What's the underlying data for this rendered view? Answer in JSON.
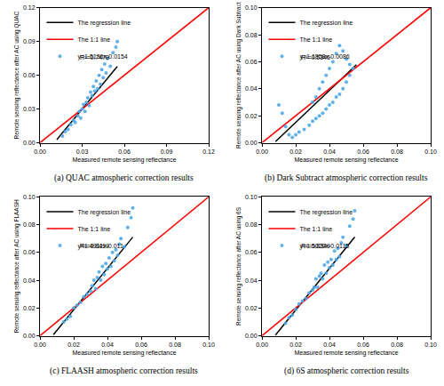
{
  "chart_data": [
    {
      "type": "scatter",
      "title": "(a) QUAC atmospheric correction results",
      "x_label": "Measured remote sensing reflectance",
      "y_label": "Remote sensing reflectance after AC using QUAC",
      "xlim": [
        0,
        0.12
      ],
      "ylim": [
        0,
        0.12
      ],
      "xticks": [
        {
          "value": 0,
          "label": "0.00"
        },
        {
          "value": 0.03,
          "label": "0.03"
        },
        {
          "value": 0.06,
          "label": "0.06"
        },
        {
          "value": 0.09,
          "label": "0.09"
        },
        {
          "value": 0.12,
          "label": "0.12"
        }
      ],
      "yticks": [
        {
          "value": 0,
          "label": "0.00"
        },
        {
          "value": 0.03,
          "label": "0.03"
        },
        {
          "value": 0.06,
          "label": "0.06"
        },
        {
          "value": 0.09,
          "label": "0.09"
        },
        {
          "value": 0.12,
          "label": "0.12"
        }
      ],
      "legend": "upper left",
      "grid": false,
      "annotations": [
        "R²=0.7470"
      ],
      "series": [
        {
          "name": "The regression line",
          "type": "line",
          "color": "#000000",
          "line_style": "solid",
          "x": [
            0.012,
            0.055
          ],
          "values": [
            0.0028,
            0.0678
          ]
        },
        {
          "name": "The 1:1 line",
          "type": "line",
          "color": "#ff0000",
          "line_style": "solid",
          "x": [
            0,
            0.12
          ],
          "values": [
            0,
            0.12
          ]
        },
        {
          "name": "y=1.5136x-0.0154",
          "type": "scatter",
          "color": "#4fa8e8",
          "marker": "circle",
          "x": [
            0.016,
            0.018,
            0.02,
            0.022,
            0.024,
            0.025,
            0.027,
            0.028,
            0.029,
            0.03,
            0.031,
            0.032,
            0.033,
            0.034,
            0.035,
            0.036,
            0.037,
            0.038,
            0.039,
            0.04,
            0.041,
            0.042,
            0.043,
            0.044,
            0.045,
            0.046,
            0.047,
            0.048,
            0.05,
            0.052,
            0.054,
            0.055
          ],
          "values": [
            0.006,
            0.01,
            0.012,
            0.016,
            0.02,
            0.018,
            0.024,
            0.028,
            0.022,
            0.03,
            0.034,
            0.028,
            0.036,
            0.04,
            0.033,
            0.045,
            0.042,
            0.05,
            0.046,
            0.055,
            0.048,
            0.06,
            0.052,
            0.065,
            0.058,
            0.07,
            0.062,
            0.075,
            0.068,
            0.08,
            0.085,
            0.09
          ]
        }
      ]
    },
    {
      "type": "scatter",
      "title": "(b) Dark Subtract atmospheric correction results",
      "x_label": "Measured remote sensing reflectance",
      "y_label": "Remote sensing reflectance after AC using Dark Subtract",
      "xlim": [
        0,
        0.1
      ],
      "ylim": [
        0,
        0.1
      ],
      "xticks": [
        {
          "value": 0,
          "label": "0.00"
        },
        {
          "value": 0.02,
          "label": "0.02"
        },
        {
          "value": 0.04,
          "label": "0.04"
        },
        {
          "value": 0.06,
          "label": "0.06"
        },
        {
          "value": 0.08,
          "label": "0.08"
        },
        {
          "value": 0.1,
          "label": "0.10"
        }
      ],
      "yticks": [
        {
          "value": 0,
          "label": "0.00"
        },
        {
          "value": 0.02,
          "label": "0.02"
        },
        {
          "value": 0.04,
          "label": "0.04"
        },
        {
          "value": 0.06,
          "label": "0.06"
        },
        {
          "value": 0.08,
          "label": "0.08"
        },
        {
          "value": 0.1,
          "label": "0.10"
        }
      ],
      "legend": "upper left",
      "grid": false,
      "annotations": [
        "R²=0.5346"
      ],
      "series": [
        {
          "name": "The regression line",
          "type": "line",
          "color": "#000000",
          "line_style": "solid",
          "x": [
            0.008,
            0.056
          ],
          "values": [
            0.0009,
            0.0578
          ]
        },
        {
          "name": "The 1:1 line",
          "type": "line",
          "color": "#ff0000",
          "line_style": "solid",
          "x": [
            0,
            0.1
          ],
          "values": [
            0,
            0.1
          ]
        },
        {
          "name": "y=1.1858x-0.0086",
          "type": "scatter",
          "color": "#4fa8e8",
          "marker": "circle",
          "x": [
            0.01,
            0.012,
            0.014,
            0.016,
            0.018,
            0.02,
            0.022,
            0.025,
            0.028,
            0.03,
            0.032,
            0.034,
            0.036,
            0.038,
            0.04,
            0.042,
            0.044,
            0.046,
            0.048,
            0.05,
            0.052,
            0.03,
            0.032,
            0.034,
            0.036,
            0.038,
            0.04,
            0.042,
            0.044,
            0.046,
            0.048,
            0.05,
            0.052,
            0.054
          ],
          "values": [
            0.028,
            0.022,
            0.012,
            0.006,
            0.004,
            0.006,
            0.008,
            0.01,
            0.013,
            0.016,
            0.018,
            0.02,
            0.022,
            0.025,
            0.028,
            0.03,
            0.034,
            0.036,
            0.04,
            0.045,
            0.05,
            0.03,
            0.034,
            0.04,
            0.045,
            0.05,
            0.055,
            0.06,
            0.066,
            0.072,
            0.068,
            0.062,
            0.058,
            0.055
          ]
        }
      ]
    },
    {
      "type": "scatter",
      "title": "(c) FLAASH atmospheric correction results",
      "x_label": "Measured remote sensing reflectance",
      "y_label": "Remote sensing reflectance after AC using FLAASH",
      "xlim": [
        0,
        0.1
      ],
      "ylim": [
        0,
        0.1
      ],
      "xticks": [
        {
          "value": 0,
          "label": "0.00"
        },
        {
          "value": 0.02,
          "label": "0.02"
        },
        {
          "value": 0.04,
          "label": "0.04"
        },
        {
          "value": 0.06,
          "label": "0.06"
        },
        {
          "value": 0.08,
          "label": "0.08"
        },
        {
          "value": 0.1,
          "label": "0.10"
        }
      ],
      "yticks": [
        {
          "value": 0,
          "label": "0.00"
        },
        {
          "value": 0.02,
          "label": "0.02"
        },
        {
          "value": 0.04,
          "label": "0.04"
        },
        {
          "value": 0.06,
          "label": "0.06"
        },
        {
          "value": 0.08,
          "label": "0.08"
        },
        {
          "value": 0.1,
          "label": "0.10"
        }
      ],
      "legend": "upper left",
      "grid": false,
      "annotations": [
        "R²=0.8499"
      ],
      "series": [
        {
          "name": "The regression line",
          "type": "line",
          "color": "#000000",
          "line_style": "solid",
          "x": [
            0.008,
            0.055
          ],
          "values": [
            0.0009,
            0.071
          ]
        },
        {
          "name": "The 1:1 line",
          "type": "line",
          "color": "#ff0000",
          "line_style": "solid",
          "x": [
            0,
            0.1
          ],
          "values": [
            0,
            0.1
          ]
        },
        {
          "name": "y=1.4911x-0.011",
          "type": "scatter",
          "color": "#4fa8e8",
          "marker": "circle",
          "x": [
            0.014,
            0.016,
            0.018,
            0.02,
            0.022,
            0.024,
            0.026,
            0.028,
            0.03,
            0.031,
            0.032,
            0.033,
            0.034,
            0.035,
            0.036,
            0.037,
            0.038,
            0.039,
            0.04,
            0.041,
            0.042,
            0.043,
            0.044,
            0.045,
            0.046,
            0.047,
            0.048,
            0.05,
            0.052,
            0.054,
            0.055
          ],
          "values": [
            0.01,
            0.012,
            0.014,
            0.02,
            0.022,
            0.024,
            0.028,
            0.03,
            0.032,
            0.036,
            0.04,
            0.034,
            0.042,
            0.046,
            0.04,
            0.05,
            0.044,
            0.052,
            0.048,
            0.056,
            0.05,
            0.06,
            0.054,
            0.062,
            0.058,
            0.066,
            0.07,
            0.064,
            0.078,
            0.085,
            0.092
          ]
        }
      ]
    },
    {
      "type": "scatter",
      "title": "(d) 6S atmospheric correction results",
      "x_label": "Measured remote sensing reflectance",
      "y_label": "Remote sensing reflectance after AC using 6S",
      "xlim": [
        0,
        0.1
      ],
      "ylim": [
        0,
        0.1
      ],
      "xticks": [
        {
          "value": 0,
          "label": "0.00"
        },
        {
          "value": 0.02,
          "label": "0.02"
        },
        {
          "value": 0.04,
          "label": "0.04"
        },
        {
          "value": 0.06,
          "label": "0.06"
        },
        {
          "value": 0.08,
          "label": "0.08"
        },
        {
          "value": 0.1,
          "label": "0.10"
        }
      ],
      "yticks": [
        {
          "value": 0,
          "label": "0.00"
        },
        {
          "value": 0.02,
          "label": "0.02"
        },
        {
          "value": 0.04,
          "label": "0.04"
        },
        {
          "value": 0.06,
          "label": "0.06"
        },
        {
          "value": 0.08,
          "label": "0.08"
        },
        {
          "value": 0.1,
          "label": "0.10"
        }
      ],
      "legend": "upper left",
      "grid": false,
      "annotations": [
        "R²=0.8349"
      ],
      "series": [
        {
          "name": "The regression line",
          "type": "line",
          "color": "#000000",
          "line_style": "solid",
          "x": [
            0.008,
            0.055
          ],
          "values": [
            0.0005,
            0.0711
          ]
        },
        {
          "name": "The 1:1 line",
          "type": "line",
          "color": "#ff0000",
          "line_style": "solid",
          "x": [
            0,
            0.1
          ],
          "values": [
            0,
            0.1
          ]
        },
        {
          "name": "y=1.5020x-0.0115",
          "type": "scatter",
          "color": "#4fa8e8",
          "marker": "circle",
          "x": [
            0.014,
            0.016,
            0.018,
            0.02,
            0.022,
            0.024,
            0.026,
            0.028,
            0.03,
            0.031,
            0.032,
            0.033,
            0.034,
            0.035,
            0.036,
            0.037,
            0.038,
            0.039,
            0.04,
            0.041,
            0.042,
            0.043,
            0.044,
            0.045,
            0.046,
            0.047,
            0.048,
            0.05,
            0.052,
            0.054,
            0.055
          ],
          "values": [
            0.009,
            0.013,
            0.015,
            0.019,
            0.023,
            0.025,
            0.027,
            0.031,
            0.033,
            0.035,
            0.041,
            0.035,
            0.043,
            0.045,
            0.041,
            0.051,
            0.045,
            0.053,
            0.049,
            0.055,
            0.051,
            0.061,
            0.055,
            0.063,
            0.057,
            0.067,
            0.071,
            0.065,
            0.079,
            0.084,
            0.09
          ]
        }
      ]
    }
  ]
}
